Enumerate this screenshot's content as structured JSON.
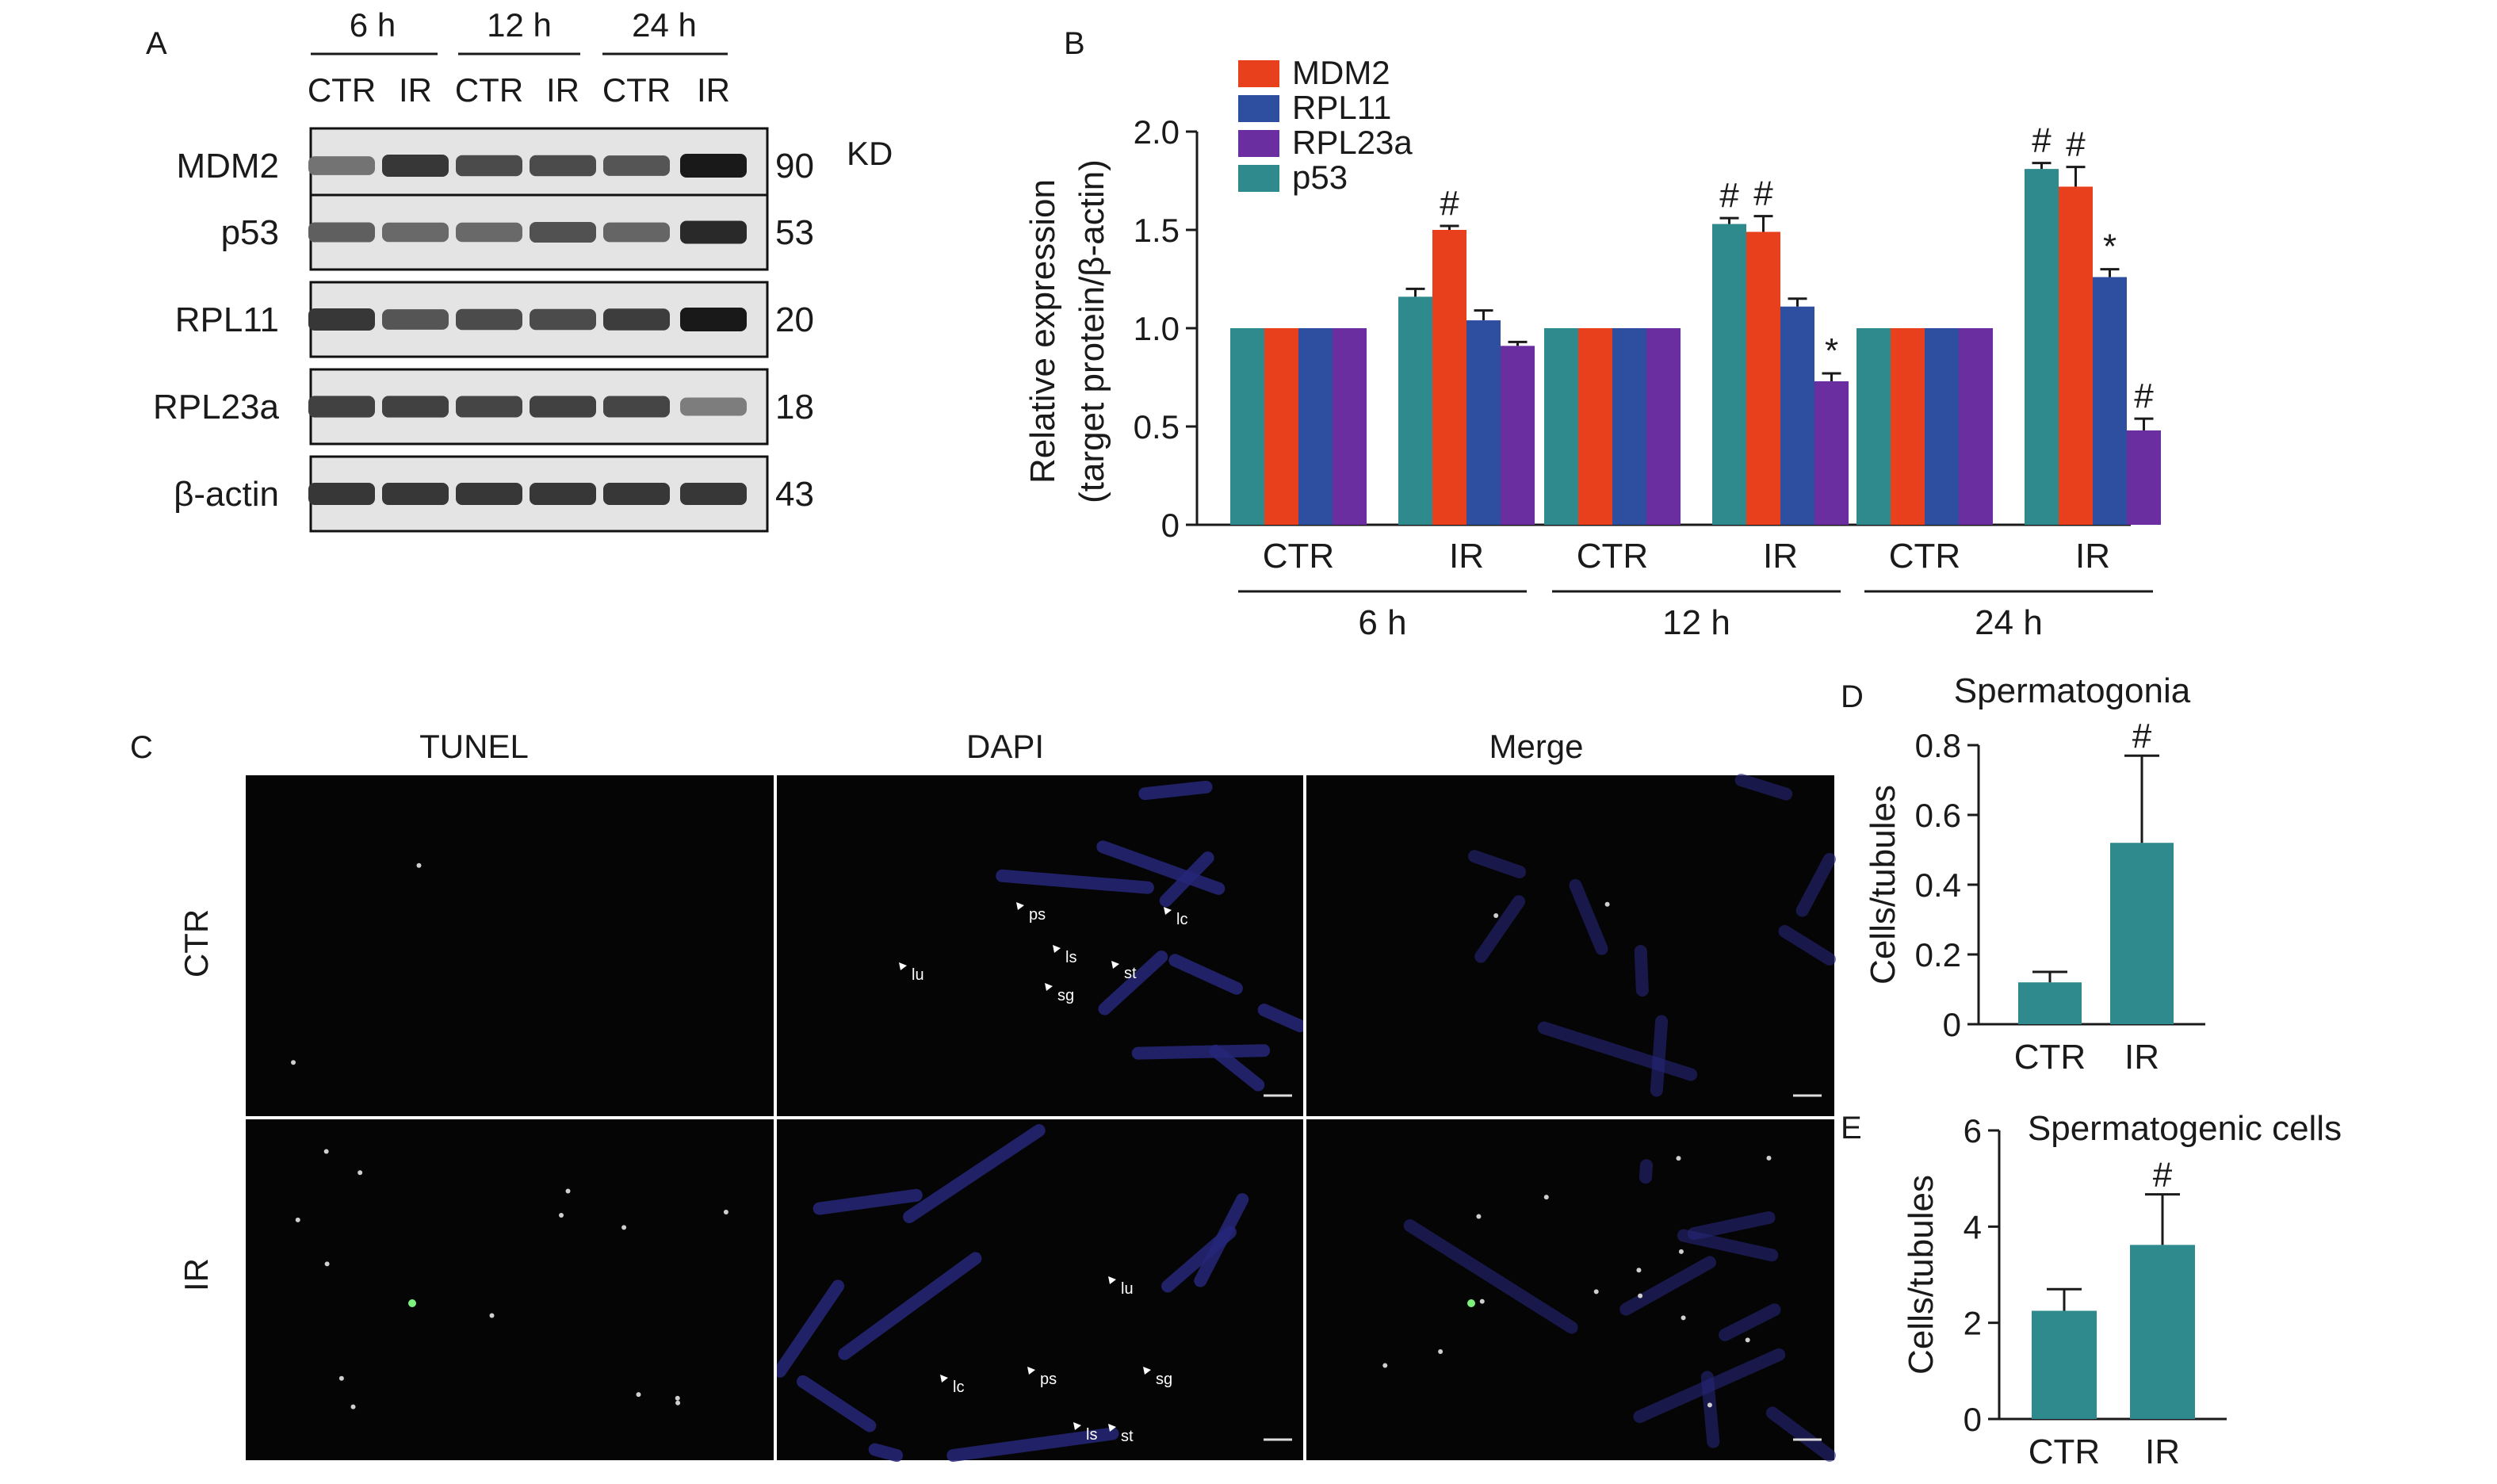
{
  "panel_letters": {
    "a": "A",
    "b": "B",
    "c": "C",
    "d": "D",
    "e": "E"
  },
  "colors": {
    "MDM2": "#e8401c",
    "RPL11": "#2e4fa0",
    "RPL23a": "#6a2ea0",
    "p53": "#2f8a8e",
    "bar_de": "#2f8a8e",
    "micrograph_bg": "#050505",
    "dapi_tint": "#26267a",
    "tunel_signal": "#7ef07e"
  },
  "blot": {
    "time_labels": [
      "6 h",
      "12 h",
      "24 h"
    ],
    "lane_labels": [
      "CTR",
      "IR",
      "CTR",
      "IR",
      "CTR",
      "IR"
    ],
    "unit_label": "KD",
    "rows": [
      {
        "protein": "MDM2",
        "kd": "90",
        "intensity": [
          0.55,
          0.85,
          0.75,
          0.75,
          0.7,
          1.0
        ]
      },
      {
        "protein": "p53",
        "kd": "53",
        "intensity": [
          0.65,
          0.6,
          0.6,
          0.72,
          0.62,
          0.92
        ]
      },
      {
        "protein": "RPL11",
        "kd": "20",
        "intensity": [
          0.85,
          0.7,
          0.75,
          0.75,
          0.82,
          1.0
        ]
      },
      {
        "protein": "RPL23a",
        "kd": "18",
        "intensity": [
          0.8,
          0.8,
          0.78,
          0.8,
          0.78,
          0.5
        ]
      },
      {
        "protein": "β-actin",
        "kd": "43",
        "intensity": [
          0.85,
          0.85,
          0.85,
          0.85,
          0.85,
          0.85
        ]
      }
    ]
  },
  "micrographs": {
    "column_headers": [
      "TUNEL",
      "DAPI",
      "Merge"
    ],
    "row_labels": [
      "CTR",
      "IR"
    ],
    "annotations_ctr": [
      "ps",
      "lc",
      "lu",
      "ls",
      "st",
      "sg"
    ],
    "annotations_ir": [
      "lu",
      "lc",
      "ps",
      "sg",
      "ls",
      "st"
    ]
  },
  "chart_data": [
    {
      "id": "B",
      "type": "bar",
      "ylabel_line1": "Relative expression",
      "ylabel_line2": "(target protein/β-actin)",
      "ylim": [
        0,
        2.0
      ],
      "yticks": [
        "0",
        "0.5",
        "1.0",
        "1.5",
        "2.0"
      ],
      "ytick_values": [
        0,
        0.5,
        1.0,
        1.5,
        2.0
      ],
      "legend": {
        "placement": "top-left",
        "order": [
          "MDM2",
          "RPL11",
          "RPL23a",
          "p53"
        ]
      },
      "bar_order": [
        "p53",
        "MDM2",
        "RPL11",
        "RPL23a"
      ],
      "subgroup_labels": [
        "CTR",
        "IR"
      ],
      "time_labels": [
        "6 h",
        "12 h",
        "24 h"
      ],
      "groups": [
        {
          "time": "6 h",
          "condition": "CTR",
          "values": {
            "p53": 1.0,
            "MDM2": 1.0,
            "RPL11": 1.0,
            "RPL23a": 1.0
          },
          "errors": {
            "p53": 0,
            "MDM2": 0,
            "RPL11": 0,
            "RPL23a": 0
          },
          "marks": {}
        },
        {
          "time": "6 h",
          "condition": "IR",
          "values": {
            "p53": 1.16,
            "MDM2": 1.5,
            "RPL11": 1.04,
            "RPL23a": 0.91
          },
          "errors": {
            "p53": 0.04,
            "MDM2": 0.02,
            "RPL11": 0.05,
            "RPL23a": 0.02
          },
          "marks": {
            "MDM2": "#"
          }
        },
        {
          "time": "12 h",
          "condition": "CTR",
          "values": {
            "p53": 1.0,
            "MDM2": 1.0,
            "RPL11": 1.0,
            "RPL23a": 1.0
          },
          "errors": {
            "p53": 0,
            "MDM2": 0,
            "RPL11": 0,
            "RPL23a": 0
          },
          "marks": {}
        },
        {
          "time": "12 h",
          "condition": "IR",
          "values": {
            "p53": 1.53,
            "MDM2": 1.49,
            "RPL11": 1.11,
            "RPL23a": 0.73
          },
          "errors": {
            "p53": 0.03,
            "MDM2": 0.08,
            "RPL11": 0.04,
            "RPL23a": 0.04
          },
          "marks": {
            "p53": "#",
            "MDM2": "#",
            "RPL23a": "*"
          }
        },
        {
          "time": "24 h",
          "condition": "CTR",
          "values": {
            "p53": 1.0,
            "MDM2": 1.0,
            "RPL11": 1.0,
            "RPL23a": 1.0
          },
          "errors": {
            "p53": 0,
            "MDM2": 0,
            "RPL11": 0,
            "RPL23a": 0
          },
          "marks": {}
        },
        {
          "time": "24 h",
          "condition": "IR",
          "values": {
            "p53": 1.81,
            "MDM2": 1.72,
            "RPL11": 1.26,
            "RPL23a": 0.48
          },
          "errors": {
            "p53": 0.03,
            "MDM2": 0.1,
            "RPL11": 0.04,
            "RPL23a": 0.06
          },
          "marks": {
            "p53": "#",
            "MDM2": "#",
            "RPL11": "*",
            "RPL23a": "#"
          }
        }
      ]
    },
    {
      "id": "D",
      "type": "bar",
      "title": "Spermatogonia",
      "ylabel": "Cells/tubules",
      "ylim": [
        0,
        0.8
      ],
      "yticks": [
        "0",
        "0.2",
        "0.4",
        "0.6",
        "0.8"
      ],
      "ytick_values": [
        0,
        0.2,
        0.4,
        0.6,
        0.8
      ],
      "categories": [
        "CTR",
        "IR"
      ],
      "values": [
        0.12,
        0.52
      ],
      "errors": [
        0.03,
        0.25
      ],
      "marks": [
        "",
        "#"
      ]
    },
    {
      "id": "E",
      "type": "bar",
      "title": "Spermatogenic cells",
      "ylabel": "Cells/tubules",
      "ylim": [
        0,
        6
      ],
      "yticks": [
        "0",
        "2",
        "4",
        "6"
      ],
      "ytick_values": [
        0,
        2,
        4,
        6
      ],
      "categories": [
        "CTR",
        "IR"
      ],
      "values": [
        2.25,
        3.62
      ],
      "errors": [
        0.45,
        1.05
      ],
      "marks": [
        "",
        "#"
      ]
    }
  ]
}
